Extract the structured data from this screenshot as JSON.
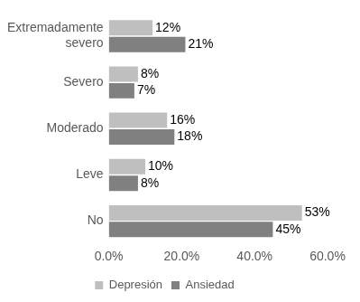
{
  "chart_data": {
    "type": "bar",
    "orientation": "horizontal",
    "categories": [
      "Extremadamente severo",
      "Severo",
      "Moderado",
      "Leve",
      "No"
    ],
    "series": [
      {
        "name": "Depresión",
        "color": "#bfbfbf",
        "values": [
          12,
          8,
          16,
          10,
          53
        ],
        "value_labels": [
          "12%",
          "8%",
          "16%",
          "10%",
          "53%"
        ]
      },
      {
        "name": "Ansiedad",
        "color": "#808080",
        "values": [
          21,
          7,
          18,
          8,
          45
        ],
        "value_labels": [
          "21%",
          "7%",
          "18%",
          "8%",
          "45%"
        ]
      }
    ],
    "xlim": [
      0,
      60
    ],
    "xticks": [
      {
        "value": 0,
        "label": "0.0%"
      },
      {
        "value": 20,
        "label": "20.0%"
      },
      {
        "value": 40,
        "label": "40.0%"
      },
      {
        "value": 60,
        "label": "60.0%"
      }
    ],
    "grid": false,
    "legend": "bottom",
    "data_labels": true
  }
}
